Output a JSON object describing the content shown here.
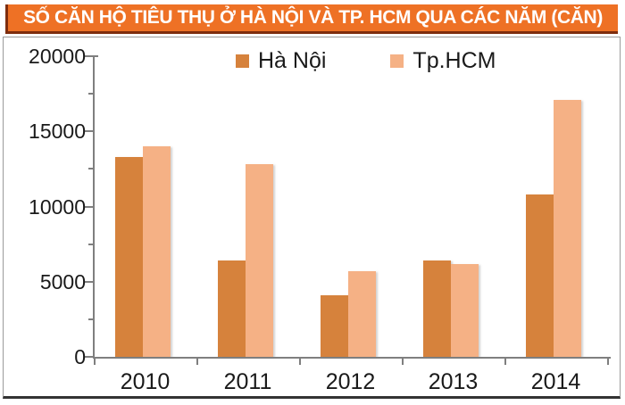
{
  "banner": {
    "title": "SỐ CĂN HỘ TIÊU THỤ Ở HÀ NỘI VÀ TP. HCM QUA CÁC NĂM (CĂN)",
    "bg_color": "#EE7125",
    "shadow_color": "#7E2D0E",
    "text_color": "#FFFFFF"
  },
  "chart_data": {
    "type": "bar",
    "title": "SỐ CĂN HỘ TIÊU THỤ Ở HÀ NỘI VÀ TP. HCM QUA CÁC NĂM (CĂN)",
    "categories": [
      "2010",
      "2011",
      "2012",
      "2013",
      "2014"
    ],
    "series": [
      {
        "name": "Hà Nội",
        "color": "#D6823C",
        "values": [
          13300,
          6400,
          4100,
          6400,
          10800
        ]
      },
      {
        "name": "Tp.HCM",
        "color": "#F5B185",
        "values": [
          14000,
          12800,
          5700,
          6200,
          17100
        ]
      }
    ],
    "xlabel": "",
    "ylabel": "",
    "ylim": [
      0,
      20000
    ],
    "y_ticks": [
      0,
      5000,
      10000,
      15000,
      20000
    ],
    "y_tick_labels": [
      "0",
      "5000",
      "10000",
      "15000",
      "20000"
    ],
    "y_minor_ticks": [
      2500,
      7500,
      12500,
      17500
    ],
    "grid": false,
    "legend_position": "top-center",
    "axis_color": "#7f7f7f"
  }
}
